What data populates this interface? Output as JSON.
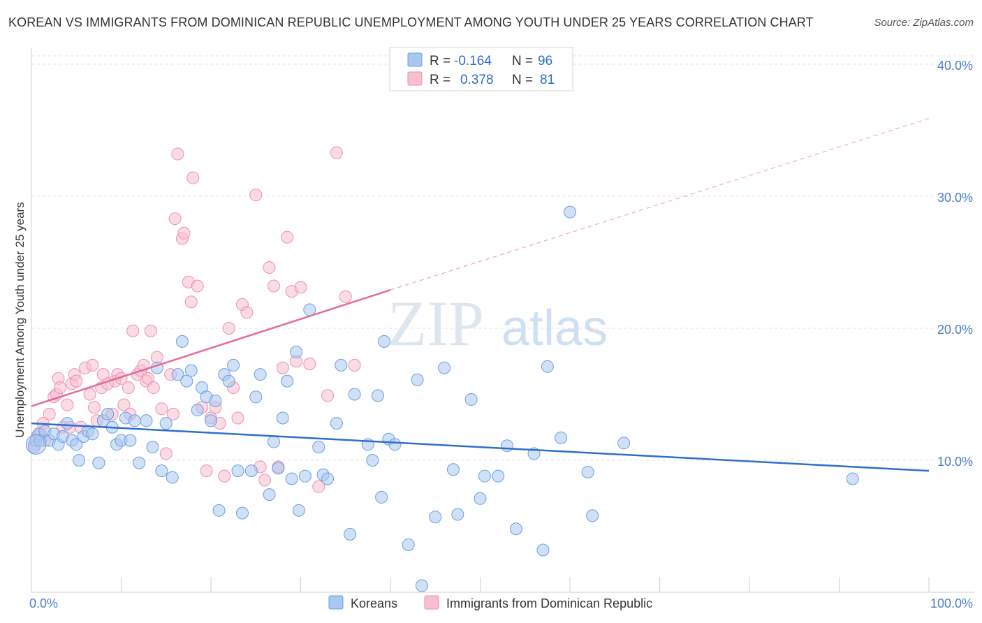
{
  "title": "KOREAN VS IMMIGRANTS FROM DOMINICAN REPUBLIC UNEMPLOYMENT AMONG YOUTH UNDER 25 YEARS CORRELATION CHART",
  "source": "Source: ZipAtlas.com",
  "watermark": {
    "zip": "ZIP",
    "atlas": "atlas"
  },
  "colors": {
    "korean_fill": "#a9c7f0",
    "korean_stroke": "#6b9fe0",
    "korean_line": "#2f6fcc",
    "dominican_fill": "#f7bfd0",
    "dominican_stroke": "#ee8fae",
    "dominican_line": "#e56a95"
  },
  "legend": {
    "r_label": "R =",
    "n_label": "N =",
    "rows": [
      {
        "series": "Koreans",
        "r": "-0.164",
        "n": "96"
      },
      {
        "series": "Immigrants from Dominican Republic",
        "r": "0.378",
        "n": "81"
      }
    ]
  },
  "chart_data": {
    "type": "scatter",
    "title": "KOREAN VS IMMIGRANTS FROM DOMINICAN REPUBLIC UNEMPLOYMENT AMONG YOUTH UNDER 25 YEARS CORRELATION CHART",
    "xlabel": "",
    "ylabel": "Unemployment Among Youth under 25 years",
    "xlim": [
      0,
      100
    ],
    "ylim": [
      0,
      40
    ],
    "x_tick_labels": [
      "0.0%",
      "100.0%"
    ],
    "y_ticks": [
      10,
      20,
      30,
      40
    ],
    "y_tick_labels": [
      "10.0%",
      "20.0%",
      "30.0%",
      "40.0%"
    ],
    "grid": true,
    "legend_position": "top-center",
    "series": [
      {
        "name": "Koreans",
        "trend": {
          "x": [
            0,
            100
          ],
          "y": [
            12.8,
            9.2
          ],
          "dashed_extension": false
        },
        "points": [
          [
            0.3,
            11.0
          ],
          [
            0.5,
            11.5
          ],
          [
            0.8,
            12.0
          ],
          [
            1.0,
            11.5
          ],
          [
            1.5,
            12.2
          ],
          [
            2.0,
            11.5
          ],
          [
            2.5,
            12.0
          ],
          [
            3.0,
            11.2
          ],
          [
            3.5,
            11.8
          ],
          [
            4.0,
            12.8
          ],
          [
            4.5,
            11.5
          ],
          [
            5.0,
            11.2
          ],
          [
            5.3,
            10.0
          ],
          [
            5.8,
            11.8
          ],
          [
            6.3,
            12.2
          ],
          [
            6.8,
            12.0
          ],
          [
            7.5,
            9.8
          ],
          [
            8.0,
            13.0
          ],
          [
            8.5,
            13.5
          ],
          [
            9.0,
            12.5
          ],
          [
            9.5,
            11.2
          ],
          [
            10.0,
            11.5
          ],
          [
            10.5,
            13.2
          ],
          [
            11.0,
            11.5
          ],
          [
            11.5,
            13.0
          ],
          [
            12.0,
            9.8
          ],
          [
            12.8,
            13.0
          ],
          [
            13.5,
            11.0
          ],
          [
            14.0,
            17.0
          ],
          [
            14.5,
            9.2
          ],
          [
            15.0,
            12.8
          ],
          [
            15.7,
            8.7
          ],
          [
            16.3,
            16.5
          ],
          [
            16.8,
            19.0
          ],
          [
            17.3,
            16.0
          ],
          [
            17.8,
            16.8
          ],
          [
            18.5,
            13.8
          ],
          [
            19.0,
            15.5
          ],
          [
            19.5,
            14.8
          ],
          [
            20.0,
            13.0
          ],
          [
            20.5,
            14.5
          ],
          [
            20.9,
            6.2
          ],
          [
            21.5,
            16.5
          ],
          [
            22.0,
            16.0
          ],
          [
            22.5,
            17.2
          ],
          [
            23.0,
            9.2
          ],
          [
            23.5,
            6.0
          ],
          [
            24.5,
            9.2
          ],
          [
            25.0,
            14.8
          ],
          [
            25.5,
            16.5
          ],
          [
            26.5,
            7.4
          ],
          [
            27.0,
            11.4
          ],
          [
            27.5,
            9.4
          ],
          [
            28.0,
            13.2
          ],
          [
            28.5,
            16.0
          ],
          [
            29.0,
            8.6
          ],
          [
            29.5,
            18.2
          ],
          [
            29.8,
            6.2
          ],
          [
            30.5,
            8.8
          ],
          [
            31.0,
            21.4
          ],
          [
            32.0,
            11.0
          ],
          [
            32.5,
            8.9
          ],
          [
            33.0,
            8.6
          ],
          [
            34.0,
            12.8
          ],
          [
            34.5,
            17.2
          ],
          [
            35.5,
            4.4
          ],
          [
            36.0,
            15.0
          ],
          [
            37.5,
            11.2
          ],
          [
            38.0,
            10.0
          ],
          [
            38.6,
            14.9
          ],
          [
            39.0,
            7.2
          ],
          [
            39.3,
            19.0
          ],
          [
            39.8,
            11.6
          ],
          [
            40.5,
            11.2
          ],
          [
            42.0,
            3.6
          ],
          [
            43.0,
            16.1
          ],
          [
            43.5,
            0.5
          ],
          [
            45.0,
            5.7
          ],
          [
            46.0,
            17.0
          ],
          [
            47.0,
            9.3
          ],
          [
            47.5,
            5.9
          ],
          [
            49.0,
            14.6
          ],
          [
            50.0,
            7.1
          ],
          [
            50.5,
            8.8
          ],
          [
            52.0,
            8.8
          ],
          [
            53.0,
            11.1
          ],
          [
            54.0,
            4.8
          ],
          [
            56.0,
            10.5
          ],
          [
            57.0,
            3.2
          ],
          [
            57.5,
            17.1
          ],
          [
            59.0,
            11.7
          ],
          [
            60.0,
            28.8
          ],
          [
            62.0,
            9.1
          ],
          [
            62.5,
            5.8
          ],
          [
            66.0,
            11.3
          ],
          [
            91.5,
            8.6
          ]
        ]
      },
      {
        "name": "Immigrants from Dominican Republic",
        "trend": {
          "x": [
            0,
            40
          ],
          "y": [
            14.1,
            22.9
          ],
          "dashed_extension_to": [
            100,
            35.9
          ]
        },
        "points": [
          [
            0.3,
            11.2
          ],
          [
            0.6,
            11.8
          ],
          [
            1.0,
            12.0
          ],
          [
            1.5,
            11.5
          ],
          [
            2.0,
            13.5
          ],
          [
            2.5,
            14.8
          ],
          [
            2.8,
            15.0
          ],
          [
            3.0,
            16.2
          ],
          [
            3.2,
            15.5
          ],
          [
            3.5,
            12.5
          ],
          [
            4.0,
            14.2
          ],
          [
            4.3,
            12.5
          ],
          [
            4.5,
            15.8
          ],
          [
            4.8,
            16.5
          ],
          [
            5.0,
            16.0
          ],
          [
            5.5,
            12.5
          ],
          [
            6.0,
            17.0
          ],
          [
            6.5,
            15.0
          ],
          [
            6.8,
            17.2
          ],
          [
            7.0,
            14.0
          ],
          [
            7.3,
            13.0
          ],
          [
            7.8,
            15.5
          ],
          [
            8.0,
            16.5
          ],
          [
            8.5,
            15.8
          ],
          [
            9.0,
            13.5
          ],
          [
            9.3,
            16.0
          ],
          [
            9.6,
            16.5
          ],
          [
            10.0,
            16.2
          ],
          [
            10.3,
            14.2
          ],
          [
            10.8,
            15.5
          ],
          [
            11.0,
            13.5
          ],
          [
            11.3,
            19.8
          ],
          [
            11.8,
            16.5
          ],
          [
            12.2,
            16.8
          ],
          [
            12.5,
            17.2
          ],
          [
            12.8,
            16.0
          ],
          [
            13.0,
            16.2
          ],
          [
            13.3,
            19.8
          ],
          [
            13.6,
            15.5
          ],
          [
            14.0,
            17.8
          ],
          [
            14.5,
            13.9
          ],
          [
            15.0,
            10.5
          ],
          [
            15.5,
            16.5
          ],
          [
            15.8,
            13.5
          ],
          [
            16.0,
            28.3
          ],
          [
            16.3,
            33.2
          ],
          [
            16.8,
            26.8
          ],
          [
            17.0,
            27.2
          ],
          [
            17.5,
            23.5
          ],
          [
            17.8,
            22.0
          ],
          [
            18.0,
            31.4
          ],
          [
            18.5,
            23.2
          ],
          [
            19.0,
            14.0
          ],
          [
            19.5,
            9.2
          ],
          [
            20.0,
            13.2
          ],
          [
            20.5,
            14.0
          ],
          [
            21.0,
            12.8
          ],
          [
            21.5,
            8.8
          ],
          [
            22.0,
            20.0
          ],
          [
            22.5,
            15.5
          ],
          [
            23.0,
            13.2
          ],
          [
            23.5,
            21.8
          ],
          [
            24.0,
            21.2
          ],
          [
            25.0,
            30.1
          ],
          [
            25.5,
            9.5
          ],
          [
            26.0,
            8.5
          ],
          [
            26.5,
            24.6
          ],
          [
            27.0,
            23.2
          ],
          [
            27.5,
            9.5
          ],
          [
            28.0,
            17.0
          ],
          [
            28.5,
            26.9
          ],
          [
            29.0,
            22.8
          ],
          [
            29.5,
            17.5
          ],
          [
            30.0,
            23.1
          ],
          [
            31.0,
            17.3
          ],
          [
            32.0,
            8.0
          ],
          [
            33.0,
            14.9
          ],
          [
            34.0,
            33.3
          ],
          [
            35.0,
            22.4
          ],
          [
            36.0,
            17.2
          ],
          [
            1.3,
            12.8
          ]
        ]
      }
    ]
  },
  "bottom_legend": [
    {
      "label": "Koreans"
    },
    {
      "label": "Immigrants from Dominican Republic"
    }
  ]
}
